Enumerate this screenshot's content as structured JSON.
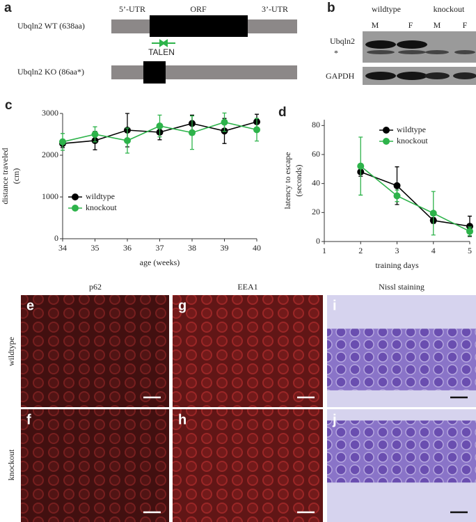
{
  "gene_diagram": {
    "panel_label": "a",
    "regions": [
      "5’-UTR",
      "ORF",
      "3’-UTR"
    ],
    "rows": [
      "Ubqln2 WT (638aa)",
      "Ubqln2 KO (86aa*)"
    ],
    "talen": "TALEN"
  },
  "blot": {
    "panel_label": "b",
    "groups": [
      "wildtype",
      "knockout"
    ],
    "lanes": [
      "M",
      "F",
      "M",
      "F"
    ],
    "bands": [
      "Ubqln2",
      "*",
      "GAPDH"
    ]
  },
  "chart_data": [
    {
      "type": "line",
      "panel_label": "c",
      "x_label": "age (weeks)",
      "y_label": [
        "distance traveled",
        "(cm)"
      ],
      "x": [
        34,
        35,
        36,
        37,
        38,
        39,
        40
      ],
      "xlim": [
        34,
        40
      ],
      "xticks": [
        34,
        35,
        36,
        37,
        38,
        39,
        40
      ],
      "ylim": [
        0,
        3000
      ],
      "yticks": [
        0,
        1000,
        2000,
        3000
      ],
      "legend": "lower left",
      "series": [
        {
          "name": "wildtype",
          "color": "#000000",
          "values": [
            2280,
            2350,
            2600,
            2550,
            2760,
            2580,
            2800
          ],
          "errors": [
            100,
            220,
            400,
            180,
            200,
            300,
            180
          ]
        },
        {
          "name": "knockout",
          "color": "#2db34a",
          "values": [
            2320,
            2500,
            2350,
            2700,
            2540,
            2790,
            2610
          ],
          "errors": [
            200,
            180,
            300,
            260,
            400,
            220,
            270
          ]
        }
      ]
    },
    {
      "type": "line",
      "panel_label": "d",
      "x_label": "training days",
      "y_label": [
        "latency to escape",
        "(seconds)"
      ],
      "x": [
        2,
        3,
        4,
        5
      ],
      "xlim": [
        1,
        5
      ],
      "xticks": [
        1,
        2,
        3,
        4,
        5
      ],
      "ylim": [
        0,
        84
      ],
      "yticks": [
        0,
        20,
        40,
        60,
        80
      ],
      "legend": "upper right",
      "series": [
        {
          "name": "wildtype",
          "color": "#000000",
          "values": [
            48,
            38.5,
            14.5,
            10.5
          ],
          "errors": [
            3,
            13,
            2,
            7
          ]
        },
        {
          "name": "knockout",
          "color": "#2db34a",
          "values": [
            52,
            31.5,
            19.5,
            7
          ],
          "errors": [
            20,
            4,
            15,
            3
          ]
        }
      ]
    }
  ],
  "micrographs": {
    "column_titles": [
      "p62",
      "EEA1",
      "Nissl staining"
    ],
    "row_labels": [
      "wildtype",
      "knockout"
    ],
    "panel_labels": [
      [
        "e",
        "g",
        "i"
      ],
      [
        "f",
        "h",
        "j"
      ]
    ]
  }
}
